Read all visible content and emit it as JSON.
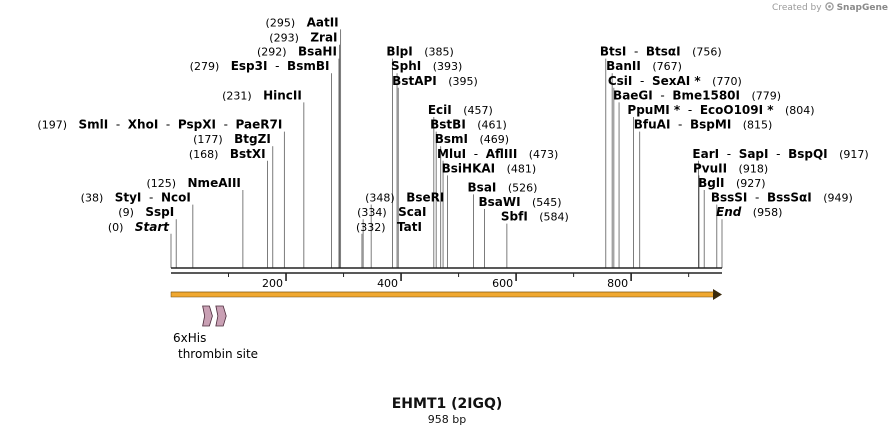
{
  "credit": {
    "text": "Created by",
    "brand": "SnapGene"
  },
  "title": "EHMT1 (2IGQ)",
  "length_label": "958 bp",
  "sequence_length": 958,
  "ruler_ticks": [
    "200",
    "400",
    "600",
    "800"
  ],
  "features": [
    {
      "name": "6xHis",
      "start": 55,
      "end": 72,
      "color": "#c9a0b4"
    },
    {
      "name": "thrombin site",
      "start": 78,
      "end": 96,
      "color": "#c9a0b4"
    }
  ],
  "orf": {
    "start": 1,
    "end": 958,
    "color": "#f0a830"
  },
  "sites": [
    {
      "pos": 0,
      "names": [
        "Start"
      ],
      "pos_label": "(0)",
      "row": 13,
      "style": "italic",
      "pos_first": true
    },
    {
      "pos": 9,
      "names": [
        "SspI"
      ],
      "pos_label": "(9)",
      "row": 12,
      "pos_first": true
    },
    {
      "pos": 38,
      "names": [
        "StyI",
        "NcoI"
      ],
      "pos_label": "(38)",
      "row": 11,
      "pos_first": true
    },
    {
      "pos": 125,
      "names": [
        "NmeAIII"
      ],
      "pos_label": "(125)",
      "row": 10,
      "pos_first": true
    },
    {
      "pos": 168,
      "names": [
        "BstXI"
      ],
      "pos_label": "(168)",
      "row": 8,
      "pos_first": true
    },
    {
      "pos": 177,
      "names": [
        "BtgZI"
      ],
      "pos_label": "(177)",
      "row": 7,
      "pos_first": true
    },
    {
      "pos": 197,
      "names": [
        "SmlI",
        "XhoI",
        "PspXI",
        "PaeR7I"
      ],
      "pos_label": "(197)",
      "row": 6,
      "pos_first": true
    },
    {
      "pos": 231,
      "names": [
        "HincII"
      ],
      "pos_label": "(231)",
      "row": 4,
      "pos_first": true
    },
    {
      "pos": 279,
      "names": [
        "Esp3I",
        "BsmBI"
      ],
      "pos_label": "(279)",
      "row": 2,
      "pos_first": true
    },
    {
      "pos": 292,
      "names": [
        "BsaHI"
      ],
      "pos_label": "(292)",
      "row": 1,
      "pos_first": true
    },
    {
      "pos": 293,
      "names": [
        "ZraI"
      ],
      "pos_label": "(293)",
      "row": 0.05,
      "pos_first": true
    },
    {
      "pos": 295,
      "names": [
        "AatII"
      ],
      "pos_label": "(295)",
      "row": -1,
      "pos_first": true
    },
    {
      "pos": 332,
      "names": [
        "TatI"
      ],
      "pos_label": "(332)",
      "row": 13,
      "pos_first": true
    },
    {
      "pos": 334,
      "names": [
        "ScaI"
      ],
      "pos_label": "(334)",
      "row": 12,
      "pos_first": true
    },
    {
      "pos": 348,
      "names": [
        "BseRI"
      ],
      "pos_label": "(348)",
      "row": 11,
      "pos_first": true
    },
    {
      "pos": 385,
      "names": [
        "BlpI"
      ],
      "pos_label": "(385)",
      "row": 1,
      "pos_first": false
    },
    {
      "pos": 393,
      "names": [
        "SphI"
      ],
      "pos_label": "(393)",
      "row": 2,
      "pos_first": false
    },
    {
      "pos": 395,
      "names": [
        "BstAPI"
      ],
      "pos_label": "(395)",
      "row": 3,
      "pos_first": false
    },
    {
      "pos": 457,
      "names": [
        "EciI"
      ],
      "pos_label": "(457)",
      "row": 5,
      "pos_first": false
    },
    {
      "pos": 461,
      "names": [
        "BstBI"
      ],
      "pos_label": "(461)",
      "row": 6,
      "pos_first": false
    },
    {
      "pos": 469,
      "names": [
        "BsmI"
      ],
      "pos_label": "(469)",
      "row": 7,
      "pos_first": false
    },
    {
      "pos": 473,
      "names": [
        "MluI",
        "AflIII"
      ],
      "pos_label": "(473)",
      "row": 8,
      "pos_first": false
    },
    {
      "pos": 481,
      "names": [
        "BsiHKAI"
      ],
      "pos_label": "(481)",
      "row": 9,
      "pos_first": false
    },
    {
      "pos": 526,
      "names": [
        "BsaI"
      ],
      "pos_label": "(526)",
      "row": 10.3,
      "pos_first": false
    },
    {
      "pos": 545,
      "names": [
        "BsaWI"
      ],
      "pos_label": "(545)",
      "row": 11.3,
      "pos_first": false
    },
    {
      "pos": 584,
      "names": [
        "SbfI"
      ],
      "pos_label": "(584)",
      "row": 12.3,
      "pos_first": false
    },
    {
      "pos": 756,
      "names": [
        "BtsI",
        "BtsαI"
      ],
      "pos_label": "(756)",
      "row": 1,
      "pos_first": false
    },
    {
      "pos": 767,
      "names": [
        "BanII"
      ],
      "pos_label": "(767)",
      "row": 2,
      "pos_first": false
    },
    {
      "pos": 770,
      "names": [
        "CsiI",
        "SexAI *"
      ],
      "pos_label": "(770)",
      "row": 3,
      "pos_first": false
    },
    {
      "pos": 779,
      "names": [
        "BaeGI",
        "Bme1580I"
      ],
      "pos_label": "(779)",
      "row": 4,
      "pos_first": false
    },
    {
      "pos": 804,
      "names": [
        "PpuMI *",
        "EcoO109I *"
      ],
      "pos_label": "(804)",
      "row": 5,
      "pos_first": false
    },
    {
      "pos": 815,
      "names": [
        "BfuAI",
        "BspMI"
      ],
      "pos_label": "(815)",
      "row": 6,
      "pos_first": false
    },
    {
      "pos": 917,
      "names": [
        "EarI",
        "SapI",
        "BspQI"
      ],
      "pos_label": "(917)",
      "row": 8,
      "pos_first": false
    },
    {
      "pos": 918,
      "names": [
        "PvuII"
      ],
      "pos_label": "(918)",
      "row": 9,
      "pos_first": false
    },
    {
      "pos": 927,
      "names": [
        "BglI"
      ],
      "pos_label": "(927)",
      "row": 10,
      "pos_first": false
    },
    {
      "pos": 949,
      "names": [
        "BssSI",
        "BssSαI"
      ],
      "pos_label": "(949)",
      "row": 11,
      "pos_first": false
    },
    {
      "pos": 958,
      "names": [
        "End"
      ],
      "pos_label": "(958)",
      "row": 12,
      "style": "italic",
      "pos_first": false
    }
  ]
}
